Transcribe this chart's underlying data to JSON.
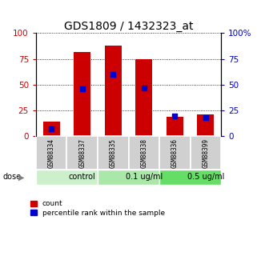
{
  "title": "GDS1809 / 1432323_at",
  "samples": [
    "GSM88334",
    "GSM88337",
    "GSM88335",
    "GSM88338",
    "GSM88336",
    "GSM88399"
  ],
  "red_values": [
    14,
    82,
    88,
    75,
    19,
    21
  ],
  "blue_values": [
    7,
    46,
    60,
    47,
    20,
    18
  ],
  "groups": [
    {
      "label": "control",
      "start": 0,
      "end": 2
    },
    {
      "label": "0.1 ug/ml",
      "start": 2,
      "end": 4
    },
    {
      "label": "0.5 ug/ml",
      "start": 4,
      "end": 6
    }
  ],
  "group_colors": [
    "#ccf0cc",
    "#aae8aa",
    "#66dd66"
  ],
  "dose_label": "dose",
  "legend_red": "count",
  "legend_blue": "percentile rank within the sample",
  "ylim": [
    0,
    100
  ],
  "yticks": [
    0,
    25,
    50,
    75,
    100
  ],
  "bar_width": 0.55,
  "red_color": "#cc0000",
  "blue_color": "#0000cc",
  "left_tick_color": "#cc0000",
  "right_tick_color": "#0000cc",
  "title_fontsize": 10,
  "tick_fontsize": 7.5,
  "sample_fontsize": 5.5,
  "dose_fontsize": 7,
  "legend_fontsize": 6.5,
  "sample_bg_color": "#d0d0d0",
  "sample_edge_color": "#ffffff"
}
